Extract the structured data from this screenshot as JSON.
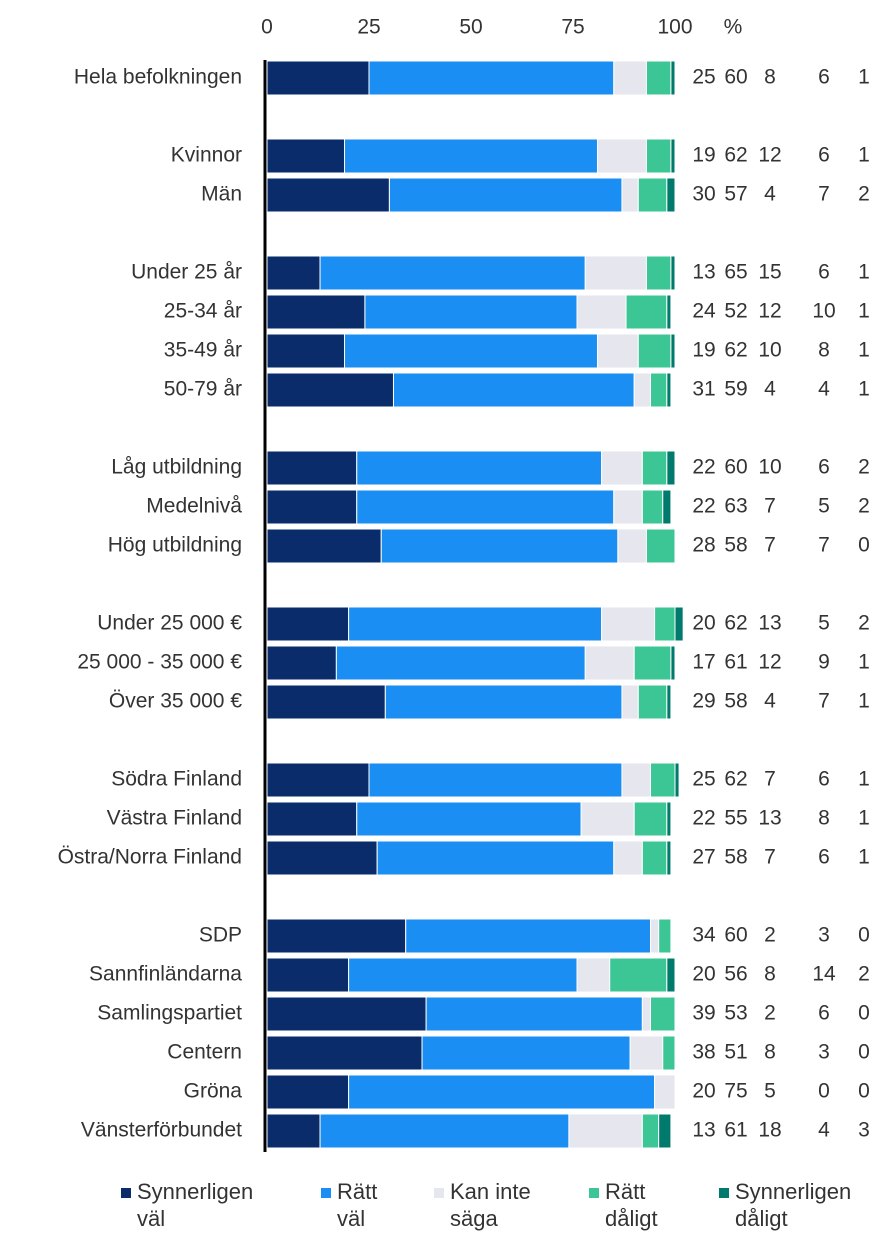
{
  "chart_data": {
    "type": "stacked_barh",
    "xlabel": "%",
    "categories": [
      "Hela befolkningen",
      null,
      "Kvinnor",
      "Män",
      null,
      "Under 25 år",
      "25-34 år",
      "35-49 år",
      "50-79 år",
      null,
      "Låg utbildning",
      "Medelnivå",
      "Hög utbildning",
      null,
      "Under 25 000 €",
      "25 000 - 35 000 €",
      "Över 35 000 €",
      null,
      "Södra Finland",
      "Västra Finland",
      "Östra/Norra Finland",
      null,
      "SDP",
      "Sannfinländarna",
      "Samlingspartiet",
      "Centern",
      "Gröna",
      "Vänsterförbundet"
    ],
    "series": [
      {
        "name": "Synnerligen väl",
        "color": "#0a2c6b",
        "values": [
          25,
          null,
          19,
          30,
          null,
          13,
          24,
          19,
          31,
          null,
          22,
          22,
          28,
          null,
          20,
          17,
          29,
          null,
          25,
          22,
          27,
          null,
          34,
          20,
          39,
          38,
          20,
          13
        ]
      },
      {
        "name": "Rätt väl",
        "color": "#1a8ef2",
        "values": [
          60,
          null,
          62,
          57,
          null,
          65,
          52,
          62,
          59,
          null,
          60,
          63,
          58,
          null,
          62,
          61,
          58,
          null,
          62,
          55,
          58,
          null,
          60,
          56,
          53,
          51,
          75,
          61
        ]
      },
      {
        "name": "Kan inte säga",
        "color": "#e6e6ee",
        "values": [
          8,
          null,
          12,
          4,
          null,
          15,
          12,
          10,
          4,
          null,
          10,
          7,
          7,
          null,
          13,
          12,
          4,
          null,
          7,
          13,
          7,
          null,
          2,
          8,
          2,
          8,
          5,
          18
        ]
      },
      {
        "name": "Rätt dåligt",
        "color": "#3cc695",
        "values": [
          6,
          null,
          6,
          7,
          null,
          6,
          10,
          8,
          4,
          null,
          6,
          5,
          7,
          null,
          5,
          9,
          7,
          null,
          6,
          8,
          6,
          null,
          3,
          14,
          6,
          3,
          0,
          4
        ]
      },
      {
        "name": "Synnerligen dåligt",
        "color": "#007a6c",
        "values": [
          1,
          null,
          1,
          2,
          null,
          1,
          1,
          1,
          1,
          null,
          2,
          2,
          0,
          null,
          2,
          1,
          1,
          null,
          1,
          1,
          1,
          null,
          0,
          2,
          0,
          0,
          0,
          3
        ]
      }
    ],
    "xlim": [
      0,
      100
    ],
    "xticks": [
      0,
      25,
      50,
      75,
      100
    ]
  }
}
